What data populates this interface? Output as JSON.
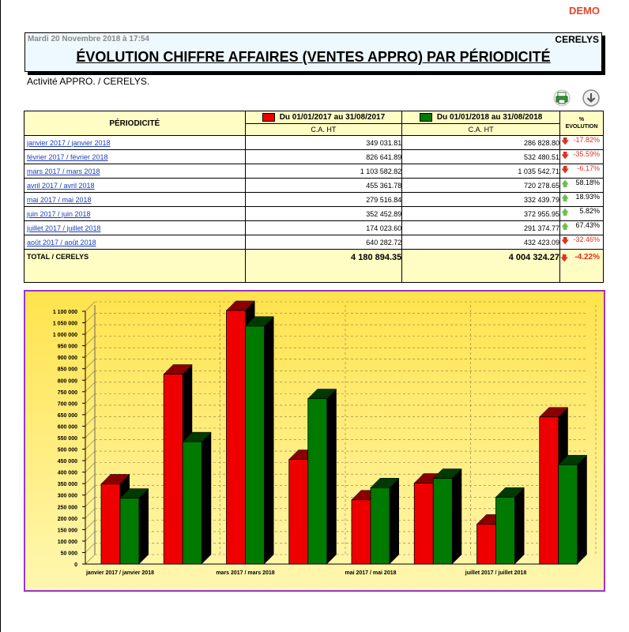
{
  "badge": "DEMO",
  "header": {
    "date": "Mardi 20 Novembre 2018 à 17:54",
    "company": "CERELYS",
    "title": "ÉVOLUTION CHIFFRE AFFAIRES (VENTES APPRO) PAR PÉRIODICITÉ"
  },
  "subtitle": "Activité APPRO. / CERELYS.",
  "toolbar": {
    "print_icon": "printer-icon",
    "download_icon": "download-arrow-icon"
  },
  "table": {
    "col_period": "PÉRIODICITÉ",
    "period1": "Du 01/01/2017 au 31/08/2017",
    "period2": "Du 01/01/2018 au 31/08/2018",
    "ca_ht": "C.A. HT",
    "pct": "%",
    "evolution": "EVOLUTION",
    "colors": {
      "period1": "#ee0000",
      "period2": "#007a00",
      "up": "#6cc04a",
      "down": "#e03020"
    },
    "rows": [
      {
        "label": "janvier 2017 / janvier 2018",
        "v1": "349 031.81",
        "v2": "286 828.80",
        "evo": "-17.82%",
        "dir": "down"
      },
      {
        "label": "février 2017 / février 2018",
        "v1": "826 641.89",
        "v2": "532 480.51",
        "evo": "-35.59%",
        "dir": "down"
      },
      {
        "label": "mars 2017 / mars 2018",
        "v1": "1 103 582.82",
        "v2": "1 035 542.71",
        "evo": "-6.17%",
        "dir": "down"
      },
      {
        "label": "avril 2017 / avril 2018",
        "v1": "455 361.78",
        "v2": "720 278.65",
        "evo": "58.18%",
        "dir": "up"
      },
      {
        "label": "mai 2017 / mai 2018",
        "v1": "279 516.84",
        "v2": "332 439.79",
        "evo": "18.93%",
        "dir": "up"
      },
      {
        "label": "juin 2017 / juin 2018",
        "v1": "352 452.89",
        "v2": "372 955.95",
        "evo": "5.82%",
        "dir": "up"
      },
      {
        "label": "juillet 2017 / juillet 2018",
        "v1": "174 023.60",
        "v2": "291 374.77",
        "evo": "67.43%",
        "dir": "up"
      },
      {
        "label": "août 2017 / août 2018",
        "v1": "640 282.72",
        "v2": "432 423.09",
        "evo": "-32.46%",
        "dir": "down"
      }
    ],
    "total": {
      "label": "TOTAL / CERELYS",
      "v1": "4 180 894.35",
      "v2": "4 004 324.27",
      "evo": "-4.22%",
      "dir": "down"
    }
  },
  "chart_data": {
    "type": "bar",
    "categories": [
      "janvier 2017 / janvier 2018",
      "février 2017 / février 2018",
      "mars 2017 / mars 2018",
      "avril 2017 / avril 2018",
      "mai 2017 / mai 2018",
      "juin 2017 / juin 2018",
      "juillet 2017 / juillet 2018",
      "août 2017 / août 2018"
    ],
    "x_tick_labels": [
      "janvier 2017 / janvier 2018",
      "",
      "mars 2017 / mars 2018",
      "",
      "mai 2017 / mai 2018",
      "",
      "juillet 2017 / juillet 2018",
      ""
    ],
    "series": [
      {
        "values": [
          349031.81,
          826641.89,
          1103582.82,
          455361.78,
          279516.84,
          352452.89,
          174023.6,
          640282.72
        ],
        "color": "#ee0000"
      },
      {
        "values": [
          286828.8,
          532480.51,
          1035542.71,
          720278.65,
          332439.79,
          372955.95,
          291374.77,
          432423.09
        ],
        "color": "#007a00"
      }
    ],
    "y_ticks": [
      "0",
      "50 000",
      "100 000",
      "150 000",
      "200 000",
      "250 000",
      "300 000",
      "350 000",
      "400 000",
      "450 000",
      "500 000",
      "550 000",
      "600 000",
      "650 000",
      "700 000",
      "750 000",
      "800 000",
      "850 000",
      "900 000",
      "950 000",
      "1 000 000",
      "1 050 000",
      "1 100 000"
    ],
    "ylim": [
      0,
      1100000
    ],
    "ystep": 50000,
    "grid": true,
    "style": "3d"
  }
}
